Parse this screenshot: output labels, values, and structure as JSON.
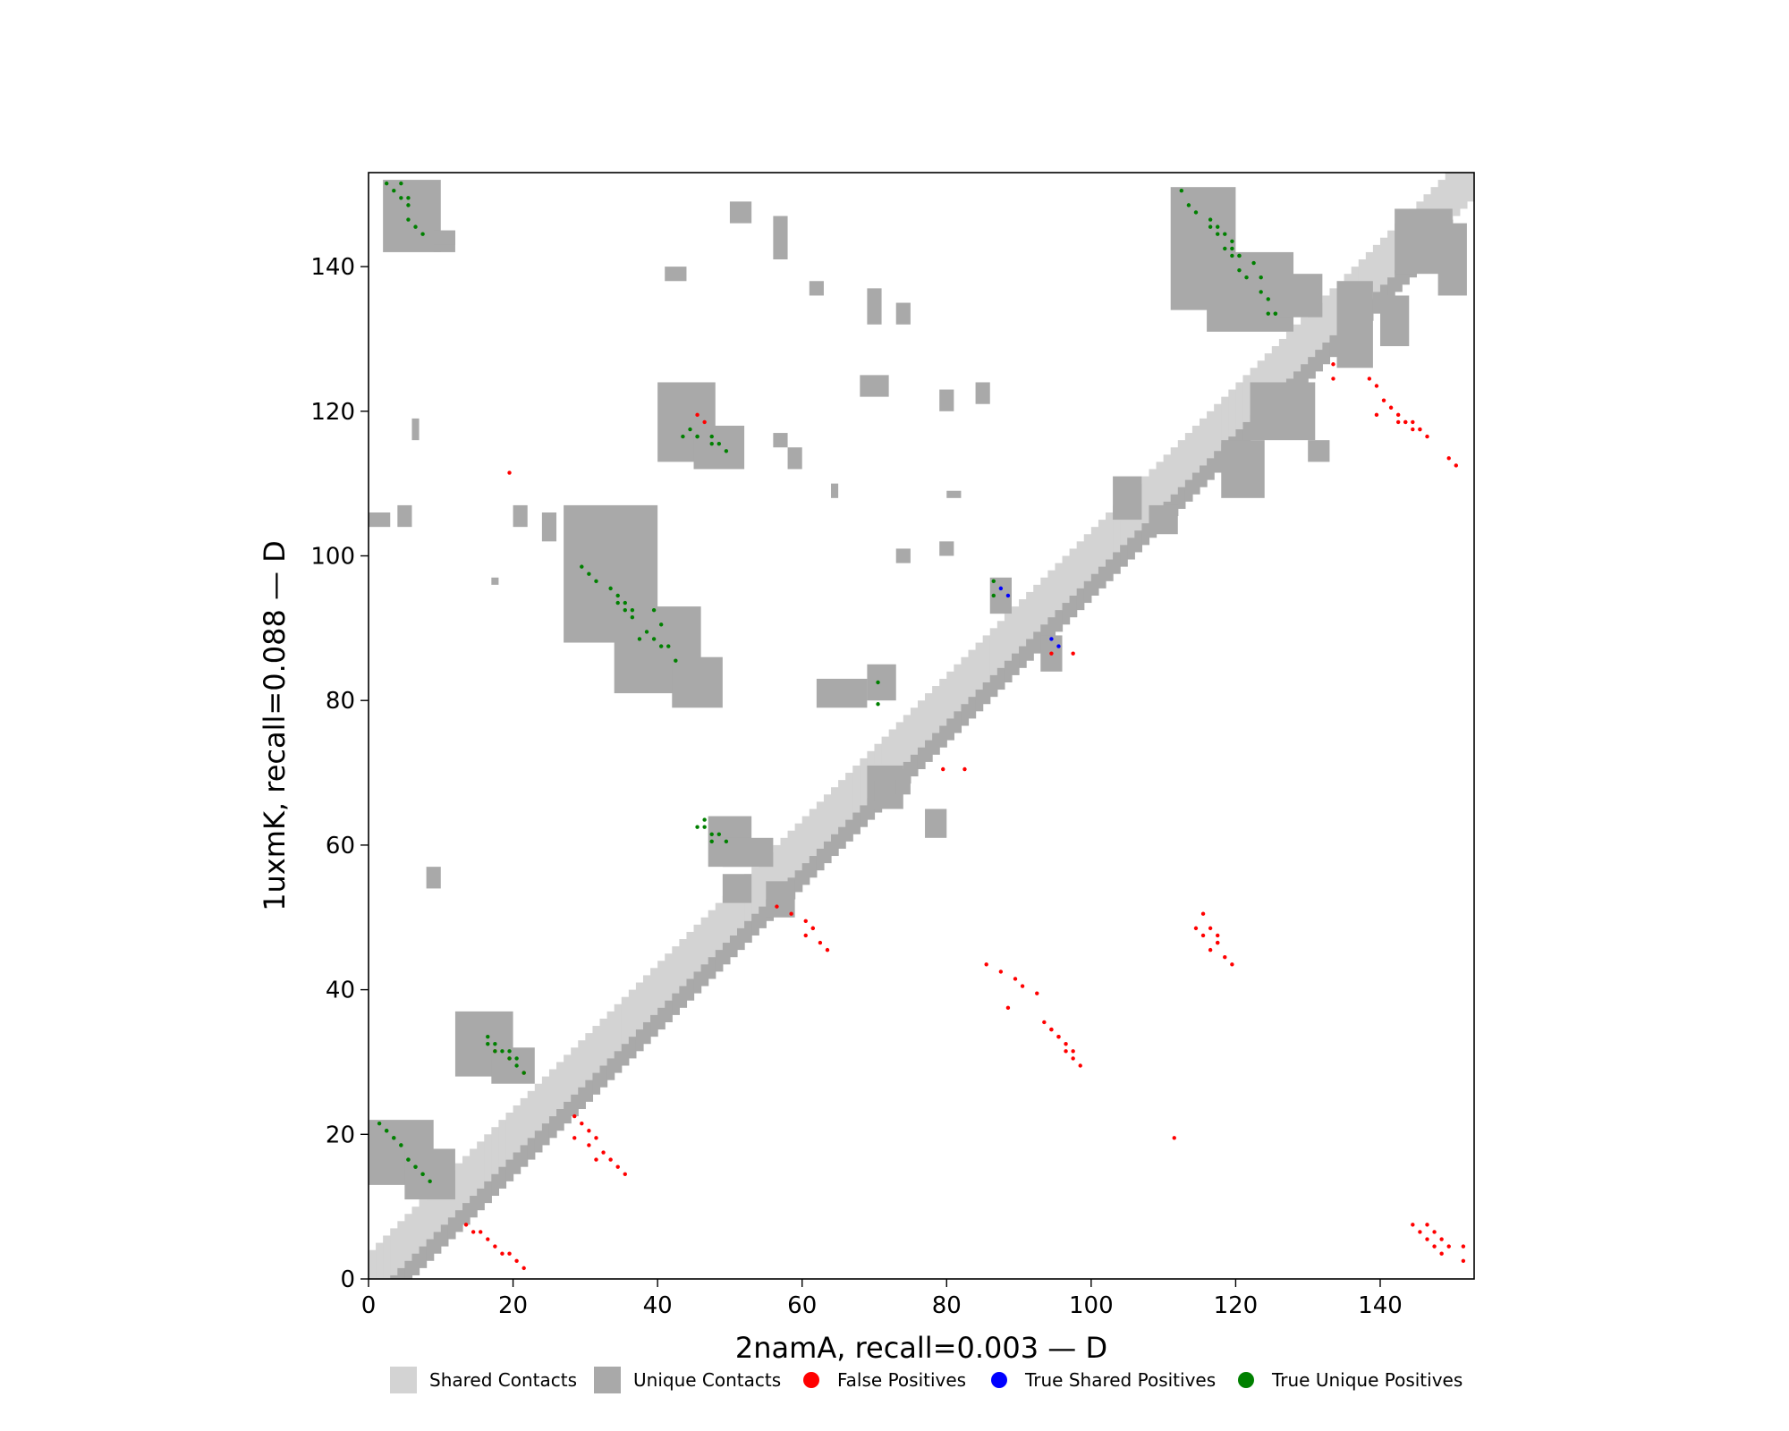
{
  "chart_data": {
    "type": "heatmap",
    "subtype": "protein-contact-map",
    "xlabel": "2namA, recall=0.003 — D",
    "ylabel": "1uxmK, recall=0.088 — D",
    "xlim": [
      0,
      153
    ],
    "ylim": [
      0,
      153
    ],
    "xticks": [
      0,
      20,
      40,
      60,
      80,
      100,
      120,
      140
    ],
    "yticks": [
      0,
      20,
      40,
      60,
      80,
      100,
      120,
      140
    ],
    "colors": {
      "shared": "#d3d3d3",
      "unique": "#a9a9a9",
      "false_pos": "#ff0000",
      "true_shared": "#0000ff",
      "true_unique": "#008000"
    },
    "legend": {
      "position": "bottom-center",
      "entries": [
        {
          "label": "Shared Contacts",
          "kind": "square",
          "color": "#d3d3d3"
        },
        {
          "label": "Unique Contacts",
          "kind": "square",
          "color": "#a9a9a9"
        },
        {
          "label": "False Positives",
          "kind": "dot",
          "color": "#ff0000"
        },
        {
          "label": "True Shared Positives",
          "kind": "dot",
          "color": "#0000ff"
        },
        {
          "label": "True Unique Positives",
          "kind": "dot",
          "color": "#008000"
        }
      ]
    },
    "shared_band": {
      "from": 0,
      "to": 153,
      "halfwidth": 3
    },
    "unique_band": {
      "offset": -4,
      "halfwidth": 1.5
    },
    "unique_rects": [
      [
        2,
        142,
        10,
        152
      ],
      [
        9,
        142,
        12,
        145
      ],
      [
        0,
        13,
        9,
        22
      ],
      [
        5,
        11,
        12,
        18
      ],
      [
        12,
        28,
        20,
        37
      ],
      [
        17,
        27,
        23,
        32
      ],
      [
        27,
        88,
        40,
        107
      ],
      [
        34,
        81,
        46,
        93
      ],
      [
        42,
        79,
        49,
        86
      ],
      [
        40,
        113,
        48,
        124
      ],
      [
        45,
        112,
        52,
        118
      ],
      [
        47,
        57,
        53,
        64
      ],
      [
        49,
        57,
        56,
        61
      ],
      [
        62,
        79,
        69,
        83
      ],
      [
        69,
        80,
        73,
        85
      ],
      [
        86,
        92,
        89,
        97
      ],
      [
        93,
        84,
        96,
        89
      ],
      [
        111,
        134,
        120,
        151
      ],
      [
        116,
        131,
        128,
        142
      ],
      [
        122,
        116,
        131,
        124
      ],
      [
        126,
        133,
        132,
        139
      ],
      [
        134,
        126,
        139,
        138
      ],
      [
        140,
        129,
        144,
        136
      ],
      [
        142,
        139,
        150,
        148
      ],
      [
        148,
        136,
        152,
        146
      ],
      [
        118,
        108,
        124,
        116
      ],
      [
        130,
        113,
        133,
        116
      ],
      [
        103,
        105,
        107,
        111
      ],
      [
        108,
        103,
        112,
        107
      ],
      [
        69,
        65,
        74,
        71
      ],
      [
        77,
        61,
        80,
        65
      ],
      [
        55,
        50,
        59,
        55
      ],
      [
        49,
        52,
        53,
        56
      ],
      [
        0,
        104,
        3,
        106
      ],
      [
        4,
        104,
        6,
        107
      ],
      [
        6,
        116,
        7,
        119
      ],
      [
        9,
        143,
        12,
        145
      ],
      [
        20,
        104,
        22,
        107
      ],
      [
        24,
        102,
        26,
        106
      ],
      [
        17,
        96,
        18,
        97
      ],
      [
        41,
        138,
        44,
        140
      ],
      [
        50,
        146,
        53,
        149
      ],
      [
        56,
        141,
        58,
        147
      ],
      [
        61,
        136,
        63,
        138
      ],
      [
        69,
        132,
        71,
        137
      ],
      [
        68,
        122,
        72,
        125
      ],
      [
        56,
        115,
        58,
        117
      ],
      [
        58,
        112,
        60,
        115
      ],
      [
        64,
        108,
        65,
        110
      ],
      [
        73,
        132,
        75,
        135
      ],
      [
        79,
        120,
        81,
        123
      ],
      [
        84,
        121,
        86,
        124
      ],
      [
        80,
        108,
        82,
        109
      ],
      [
        79,
        100,
        81,
        102
      ],
      [
        73,
        99,
        75,
        101
      ],
      [
        8,
        54,
        10,
        57
      ],
      [
        70,
        66,
        72,
        69
      ],
      [
        73,
        67,
        75,
        69
      ]
    ],
    "false_positive_segments": [
      [
        13,
        7,
        21,
        1,
        9
      ],
      [
        17,
        31,
        21,
        28,
        3
      ],
      [
        28,
        22,
        35,
        14,
        8
      ],
      [
        28,
        19,
        31,
        16,
        3
      ],
      [
        45,
        119,
        46,
        118,
        2
      ],
      [
        19,
        111,
        19,
        111,
        1
      ],
      [
        56,
        51,
        58,
        50,
        2
      ],
      [
        60,
        49,
        63,
        45,
        4
      ],
      [
        60,
        47,
        61,
        48,
        2
      ],
      [
        79,
        70,
        82,
        70,
        2
      ],
      [
        85,
        43,
        92,
        39,
        5
      ],
      [
        88,
        37,
        88,
        37,
        1
      ],
      [
        93,
        35,
        98,
        29,
        6
      ],
      [
        94,
        34,
        97,
        31,
        4
      ],
      [
        94,
        86,
        97,
        86,
        2
      ],
      [
        114,
        48,
        119,
        43,
        5
      ],
      [
        115,
        50,
        117,
        46,
        3
      ],
      [
        117,
        47,
        116,
        45,
        2
      ],
      [
        111,
        19,
        111,
        19,
        1
      ],
      [
        133,
        126,
        133,
        124,
        2
      ],
      [
        138,
        124,
        140,
        121,
        3
      ],
      [
        139,
        119,
        139,
        119,
        1
      ],
      [
        141,
        120,
        146,
        116,
        6
      ],
      [
        142,
        118,
        145,
        117,
        4
      ],
      [
        149,
        113,
        150,
        112,
        2
      ],
      [
        144,
        7,
        148,
        3,
        5
      ],
      [
        146,
        7,
        149,
        4,
        4
      ],
      [
        151,
        4,
        151,
        2,
        2
      ]
    ],
    "true_unique_segments": [
      [
        2,
        151,
        7,
        144,
        7
      ],
      [
        4,
        151,
        5,
        149,
        2
      ],
      [
        1,
        21,
        8,
        13,
        8
      ],
      [
        2,
        20,
        7,
        14,
        6
      ],
      [
        16,
        33,
        21,
        28,
        6
      ],
      [
        16,
        32,
        20,
        30,
        4
      ],
      [
        29,
        98,
        36,
        92,
        7
      ],
      [
        34,
        93,
        40,
        87,
        6
      ],
      [
        39,
        92,
        42,
        85,
        4
      ],
      [
        37,
        88,
        38,
        88,
        1
      ],
      [
        44,
        117,
        49,
        114,
        5
      ],
      [
        43,
        116,
        47,
        115,
        3
      ],
      [
        45,
        62,
        49,
        60,
        5
      ],
      [
        46,
        63,
        47,
        60,
        2
      ],
      [
        70,
        82,
        70,
        79,
        2
      ],
      [
        86,
        96,
        86,
        94,
        2
      ],
      [
        112,
        150,
        125,
        133,
        12
      ],
      [
        116,
        146,
        120,
        141,
        5
      ],
      [
        119,
        143,
        123,
        138,
        4
      ],
      [
        124,
        133,
        125,
        133,
        2
      ]
    ],
    "true_shared_points": [
      [
        87,
        95
      ],
      [
        88,
        94
      ],
      [
        94,
        88
      ],
      [
        95,
        87
      ]
    ]
  }
}
